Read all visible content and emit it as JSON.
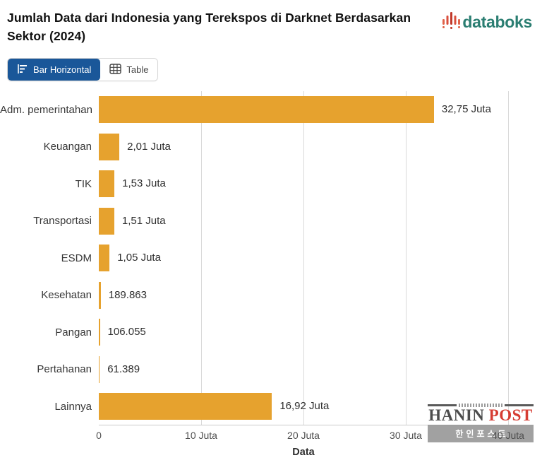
{
  "header": {
    "title": "Jumlah Data dari Indonesia yang Terekspos di Darknet Berdasarkan Sektor (2024)",
    "brand": "databoks"
  },
  "toolbar": {
    "bar_horizontal_label": "Bar Horizontal",
    "table_label": "Table"
  },
  "chart_data": {
    "type": "bar",
    "orientation": "horizontal",
    "title": "Jumlah Data dari Indonesia yang Terekspos di Darknet Berdasarkan Sektor (2024)",
    "categories": [
      "Adm. pemerintahan",
      "Keuangan",
      "TIK",
      "Transportasi",
      "ESDM",
      "Kesehatan",
      "Pangan",
      "Pertahanan",
      "Lainnya"
    ],
    "values_juta": [
      32.75,
      2.01,
      1.53,
      1.51,
      1.05,
      0.189863,
      0.106055,
      0.061389,
      16.92
    ],
    "value_labels": [
      "32,75 Juta",
      "2,01 Juta",
      "1,53 Juta",
      "1,51 Juta",
      "1,05 Juta",
      "189.863",
      "106.055",
      "61.389",
      "16,92 Juta"
    ],
    "xlabel": "Data",
    "x_ticks": [
      "0",
      "10 Juta",
      "20 Juta",
      "30 Juta",
      "40 Juta"
    ],
    "xlim": [
      0,
      40
    ],
    "grid": true,
    "legend": "none"
  },
  "watermark": {
    "name_dark": "HANIN",
    "name_red": "POST",
    "band_text": "한인포스트"
  },
  "colors": {
    "bar": "#E6A22E",
    "accent_blue": "#1A5799",
    "brand_teal": "#2B7E72",
    "watermark_red": "#D63C32"
  }
}
